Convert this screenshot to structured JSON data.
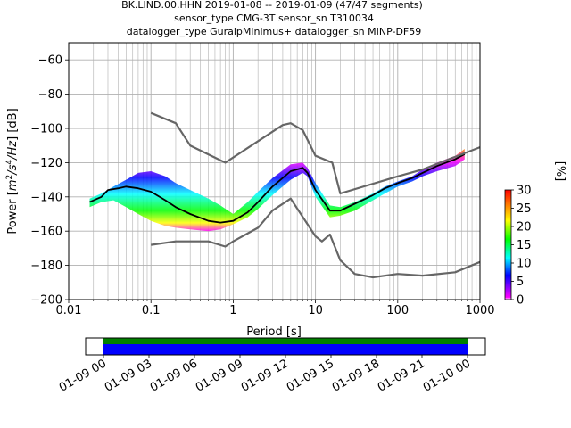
{
  "title": {
    "line1": "BK.LIND.00.HHN   2019-01-08 -- 2019-01-09  (47/47 segments)",
    "line2": "sensor_type CMG-3T sensor_sn T310034",
    "line3": "datalogger_type GuralpMinimus+ datalogger_sn MINP-DF59"
  },
  "chart_data": [
    {
      "type": "heatmap",
      "subtype": "probabilistic-power-spectral-density",
      "xlabel": "Period [s]",
      "ylabel_parts": [
        "Power [",
        "m",
        "2",
        "/s",
        "4",
        "/Hz",
        "] [dB]"
      ],
      "xscale": "log",
      "xlim": [
        0.01,
        1000
      ],
      "ylim": [
        -200,
        -50
      ],
      "x_ticks": [
        0.01,
        0.1,
        1,
        10,
        100,
        1000
      ],
      "x_tick_labels": [
        "0.01",
        "0.1",
        "1",
        "10",
        "100",
        "1000"
      ],
      "y_ticks": [
        -200,
        -180,
        -160,
        -140,
        -120,
        -100,
        -80,
        -60
      ],
      "y_tick_labels": [
        "−200",
        "−180",
        "−160",
        "−140",
        "−120",
        "−100",
        "−80",
        "−60"
      ],
      "grid": true,
      "colorbar": {
        "label": "[%]",
        "range": [
          0,
          30
        ],
        "ticks": [
          "0",
          "5",
          "10",
          "15",
          "20",
          "25",
          "30"
        ],
        "colormap": [
          "#ffffff",
          "#ff00ff",
          "#0000ff",
          "#00ffff",
          "#00ff00",
          "#ffff00",
          "#ff8000",
          "#ff0000"
        ]
      },
      "ppsd_band": {
        "period": [
          0.018,
          0.025,
          0.035,
          0.05,
          0.07,
          0.1,
          0.15,
          0.2,
          0.3,
          0.5,
          0.7,
          1.0,
          1.5,
          2.0,
          3.0,
          5.0,
          7.0,
          8.0,
          10.0,
          15.0,
          20.0,
          30.0,
          50.0,
          70.0,
          100.0,
          150.0,
          200.0,
          300.0,
          500.0,
          650.0
        ],
        "upper_db": [
          -141,
          -138,
          -134,
          -130,
          -126,
          -125,
          -128,
          -132,
          -136,
          -141,
          -145,
          -150,
          -143,
          -137,
          -129,
          -121,
          -120,
          -123,
          -132,
          -145,
          -146,
          -143,
          -138,
          -134,
          -131,
          -128,
          -124,
          -120,
          -116,
          -112
        ],
        "lower_db": [
          -146,
          -143,
          -142,
          -146,
          -150,
          -154,
          -157,
          -158,
          -159,
          -160,
          -159,
          -156,
          -152,
          -147,
          -139,
          -130,
          -126,
          -128,
          -140,
          -152,
          -151,
          -148,
          -142,
          -138,
          -134,
          -131,
          -128,
          -125,
          -122,
          -118
        ]
      },
      "series": [
        {
          "name": "",
          "color": "#000000",
          "x": [
            0.018,
            0.025,
            0.03,
            0.04,
            0.05,
            0.07,
            0.1,
            0.15,
            0.2,
            0.3,
            0.5,
            0.7,
            1.0,
            1.5,
            2.0,
            3.0,
            5.0,
            7.0,
            8.0,
            10.0,
            15.0,
            20.0,
            30.0,
            50.0,
            70.0,
            100.0,
            150.0,
            200.0,
            300.0,
            500.0,
            650.0
          ],
          "y": [
            -143,
            -140,
            -136,
            -135,
            -134,
            -135,
            -137,
            -142,
            -146,
            -150,
            -154,
            -155,
            -154,
            -149,
            -143,
            -134,
            -125,
            -123,
            -126,
            -136,
            -148,
            -148,
            -144,
            -139,
            -135,
            -132,
            -129,
            -126,
            -122,
            -118,
            -115
          ]
        },
        {
          "name": "",
          "color": "#666666",
          "x": [
            0.1,
            0.2,
            0.3,
            0.8,
            4.0,
            5.0,
            7.0,
            10.0,
            16.0,
            20.0,
            100.0,
            200.0,
            1000.0
          ],
          "y": [
            -91,
            -97,
            -110,
            -120,
            -98,
            -97,
            -101,
            -116,
            -120,
            -138,
            -128,
            -124,
            -111
          ]
        },
        {
          "name": "",
          "color": "#666666",
          "x": [
            0.1,
            0.2,
            0.5,
            0.8,
            1.0,
            2.0,
            3.0,
            5.0,
            10.0,
            12.0,
            15.0,
            20.0,
            30.0,
            50.0,
            100.0,
            200.0,
            500.0,
            1000.0
          ],
          "y": [
            -168,
            -166,
            -166,
            -169,
            -166,
            -158,
            -148,
            -141,
            -163,
            -166,
            -162,
            -177,
            -185,
            -187,
            -185,
            -186,
            -184,
            -178
          ]
        }
      ]
    },
    {
      "type": "timeline",
      "x_tick_labels": [
        "01-09 00",
        "01-09 03",
        "01-09 06",
        "01-09 09",
        "01-09 12",
        "01-09 15",
        "01-09 18",
        "01-09 21",
        "01-10 00"
      ],
      "segments": [
        {
          "start": "01-09 00",
          "end": "01-10 00",
          "color": "#0000ff"
        }
      ],
      "overlay": {
        "start": "01-09 00",
        "end": "01-10 00",
        "color": "#008000"
      }
    }
  ]
}
